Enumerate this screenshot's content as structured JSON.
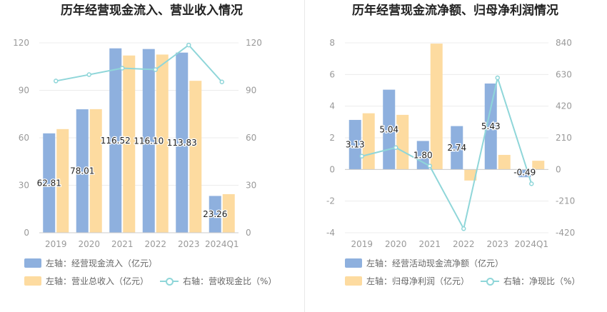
{
  "colors": {
    "bar_primary": "#8eb0de",
    "bar_secondary": "#fddba0",
    "line": "#8fd6d9",
    "axis_text": "#999999",
    "grid": "#ececec",
    "label_text": "#222222"
  },
  "left_chart": {
    "title": "历年经营现金流入、营业收入情况",
    "legend": {
      "bar1": "左轴：经营现金流入（亿元）",
      "bar2": "左轴：营业总收入（亿元）",
      "line": "右轴：营收现金比（%）"
    }
  },
  "right_chart": {
    "title": "历年经营现金流净额、归母净利润情况",
    "legend": {
      "bar1": "左轴：经营活动现金流净额（亿元）",
      "bar2": "左轴：归母净利润（亿元）",
      "line": "右轴：净现比（%）"
    }
  },
  "chart_data": [
    {
      "type": "bar",
      "title": "历年经营现金流入、营业收入情况",
      "categories": [
        "2019",
        "2020",
        "2021",
        "2022",
        "2023",
        "2024Q1"
      ],
      "ylim_left": [
        0,
        120
      ],
      "yticks_left": [
        0,
        30,
        60,
        90,
        120
      ],
      "ylim_right": [
        0,
        120
      ],
      "yticks_right": [
        0,
        30,
        60,
        90,
        120
      ],
      "series": [
        {
          "name": "左轴：经营现金流入（亿元）",
          "axis": "left",
          "kind": "bar",
          "values": [
            62.81,
            78.01,
            116.52,
            116.1,
            113.83,
            23.26
          ],
          "labels": [
            "62.81",
            "78.01",
            "116.52",
            "116.10",
            "113.83",
            "23.26"
          ]
        },
        {
          "name": "左轴：营业总收入（亿元）",
          "axis": "left",
          "kind": "bar",
          "values": [
            65.5,
            78.1,
            112.0,
            112.6,
            96.0,
            24.4
          ]
        },
        {
          "name": "右轴：营收现金比（%）",
          "axis": "right",
          "kind": "line",
          "values": [
            95.9,
            99.9,
            104.0,
            103.1,
            118.6,
            95.3
          ]
        }
      ],
      "grid": true,
      "legend_position": "bottom"
    },
    {
      "type": "bar",
      "title": "历年经营现金流净额、归母净利润情况",
      "categories": [
        "2019",
        "2020",
        "2021",
        "2022",
        "2023",
        "2024Q1"
      ],
      "ylim_left": [
        -4,
        8
      ],
      "yticks_left": [
        -4,
        -2,
        0,
        2,
        4,
        6,
        8
      ],
      "ylim_right": [
        -420,
        840
      ],
      "yticks_right": [
        -420,
        -210,
        0,
        210,
        420,
        630,
        840
      ],
      "series": [
        {
          "name": "左轴：经营活动现金流净额（亿元）",
          "axis": "left",
          "kind": "bar",
          "values": [
            3.13,
            5.04,
            1.8,
            2.74,
            5.43,
            -0.49
          ],
          "labels": [
            "3.13",
            "5.04",
            "1.80",
            "2.74",
            "5.43",
            "-0.49"
          ]
        },
        {
          "name": "左轴：归母净利润（亿元）",
          "axis": "left",
          "kind": "bar",
          "values": [
            3.55,
            3.45,
            7.95,
            -0.7,
            0.92,
            0.55
          ]
        },
        {
          "name": "右轴：净现比（%）",
          "axis": "right",
          "kind": "line",
          "values": [
            88,
            145,
            23,
            -393,
            608,
            -95
          ]
        }
      ],
      "grid": true,
      "legend_position": "bottom"
    }
  ]
}
